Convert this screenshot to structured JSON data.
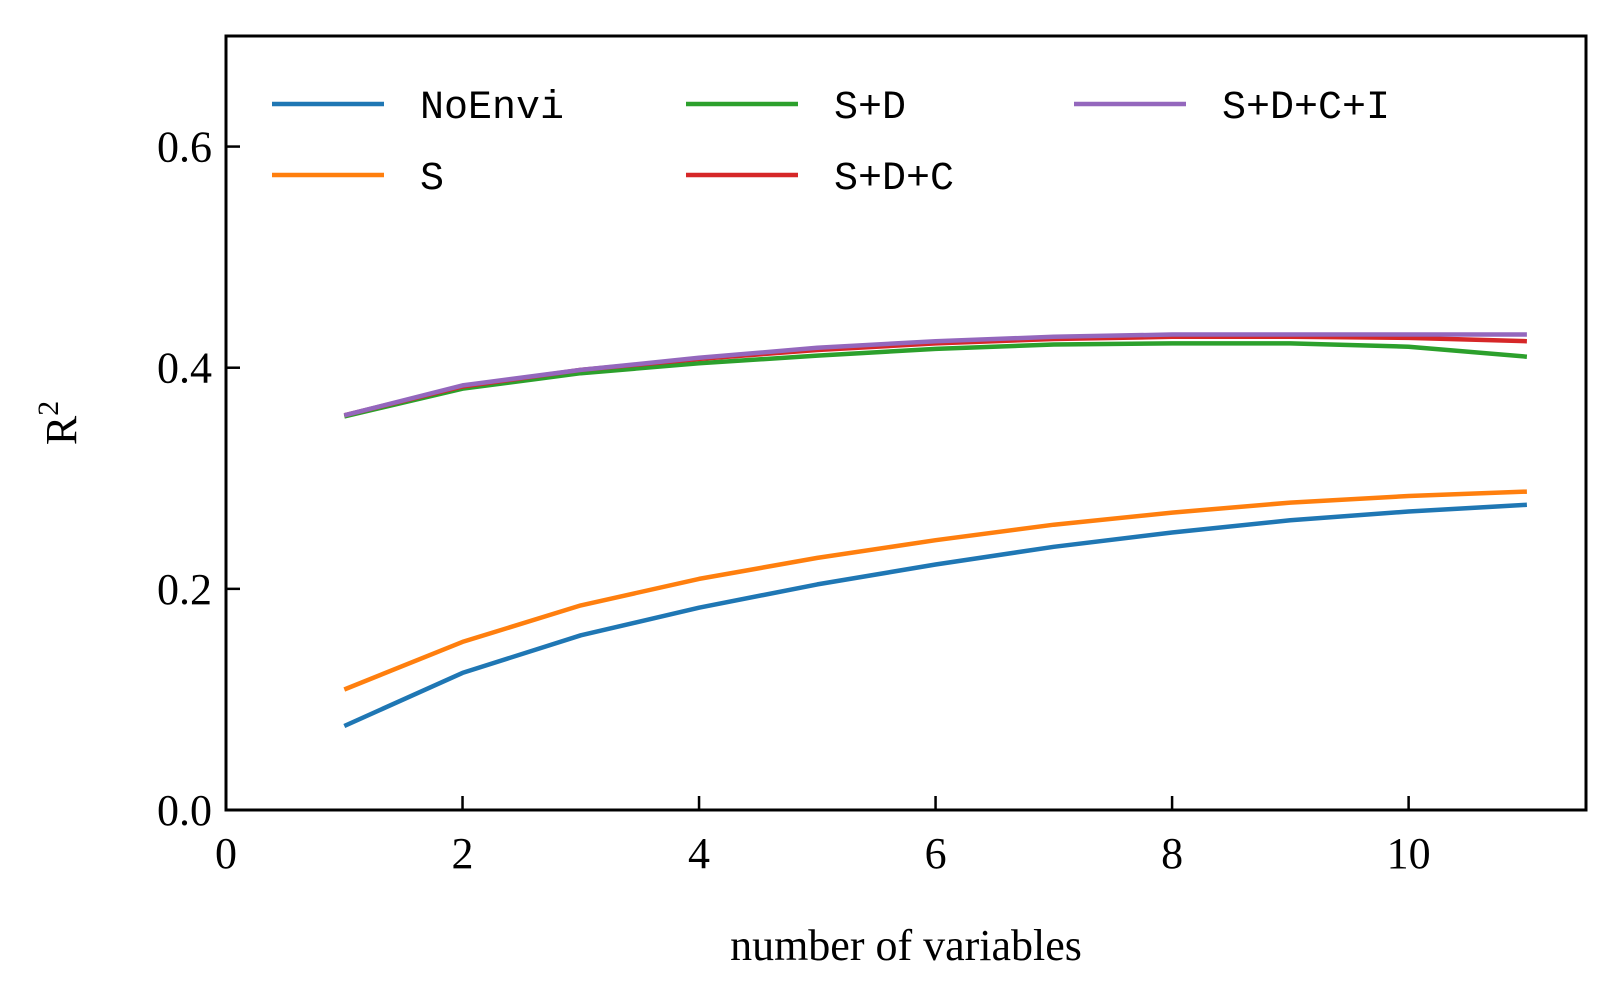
{
  "chart_data": {
    "type": "line",
    "title": "",
    "xlabel": "number of variables",
    "ylabel": "R",
    "ylabel_superscript": "2",
    "xlim": [
      0,
      11.5
    ],
    "ylim": [
      0,
      0.7
    ],
    "x_ticks": [
      0,
      2,
      4,
      6,
      8,
      10
    ],
    "x_tick_labels": [
      "0",
      "2",
      "4",
      "6",
      "8",
      "10"
    ],
    "y_ticks": [
      0.0,
      0.2,
      0.4,
      0.6
    ],
    "y_tick_labels": [
      "0.0",
      "0.2",
      "0.4",
      "0.6"
    ],
    "grid": false,
    "legend_position": "top",
    "x": [
      1,
      2,
      3,
      4,
      5,
      6,
      7,
      8,
      9,
      10,
      11
    ],
    "series": [
      {
        "name": "NoEnvi",
        "color": "#1f77b4",
        "values": [
          0.076,
          0.124,
          0.158,
          0.183,
          0.204,
          0.222,
          0.238,
          0.251,
          0.262,
          0.27,
          0.276
        ]
      },
      {
        "name": "S",
        "color": "#ff7f0e",
        "values": [
          0.109,
          0.152,
          0.185,
          0.209,
          0.228,
          0.244,
          0.258,
          0.269,
          0.278,
          0.284,
          0.288
        ]
      },
      {
        "name": "S+D",
        "color": "#2ca02c",
        "values": [
          0.356,
          0.381,
          0.395,
          0.404,
          0.411,
          0.417,
          0.421,
          0.422,
          0.422,
          0.419,
          0.41
        ]
      },
      {
        "name": "S+D+C",
        "color": "#d62728",
        "values": [
          0.357,
          0.383,
          0.398,
          0.408,
          0.416,
          0.422,
          0.426,
          0.428,
          0.428,
          0.427,
          0.424
        ]
      },
      {
        "name": "S+D+C+I",
        "color": "#9467bd",
        "values": [
          0.357,
          0.384,
          0.398,
          0.409,
          0.418,
          0.424,
          0.428,
          0.43,
          0.43,
          0.43,
          0.43
        ]
      }
    ]
  }
}
